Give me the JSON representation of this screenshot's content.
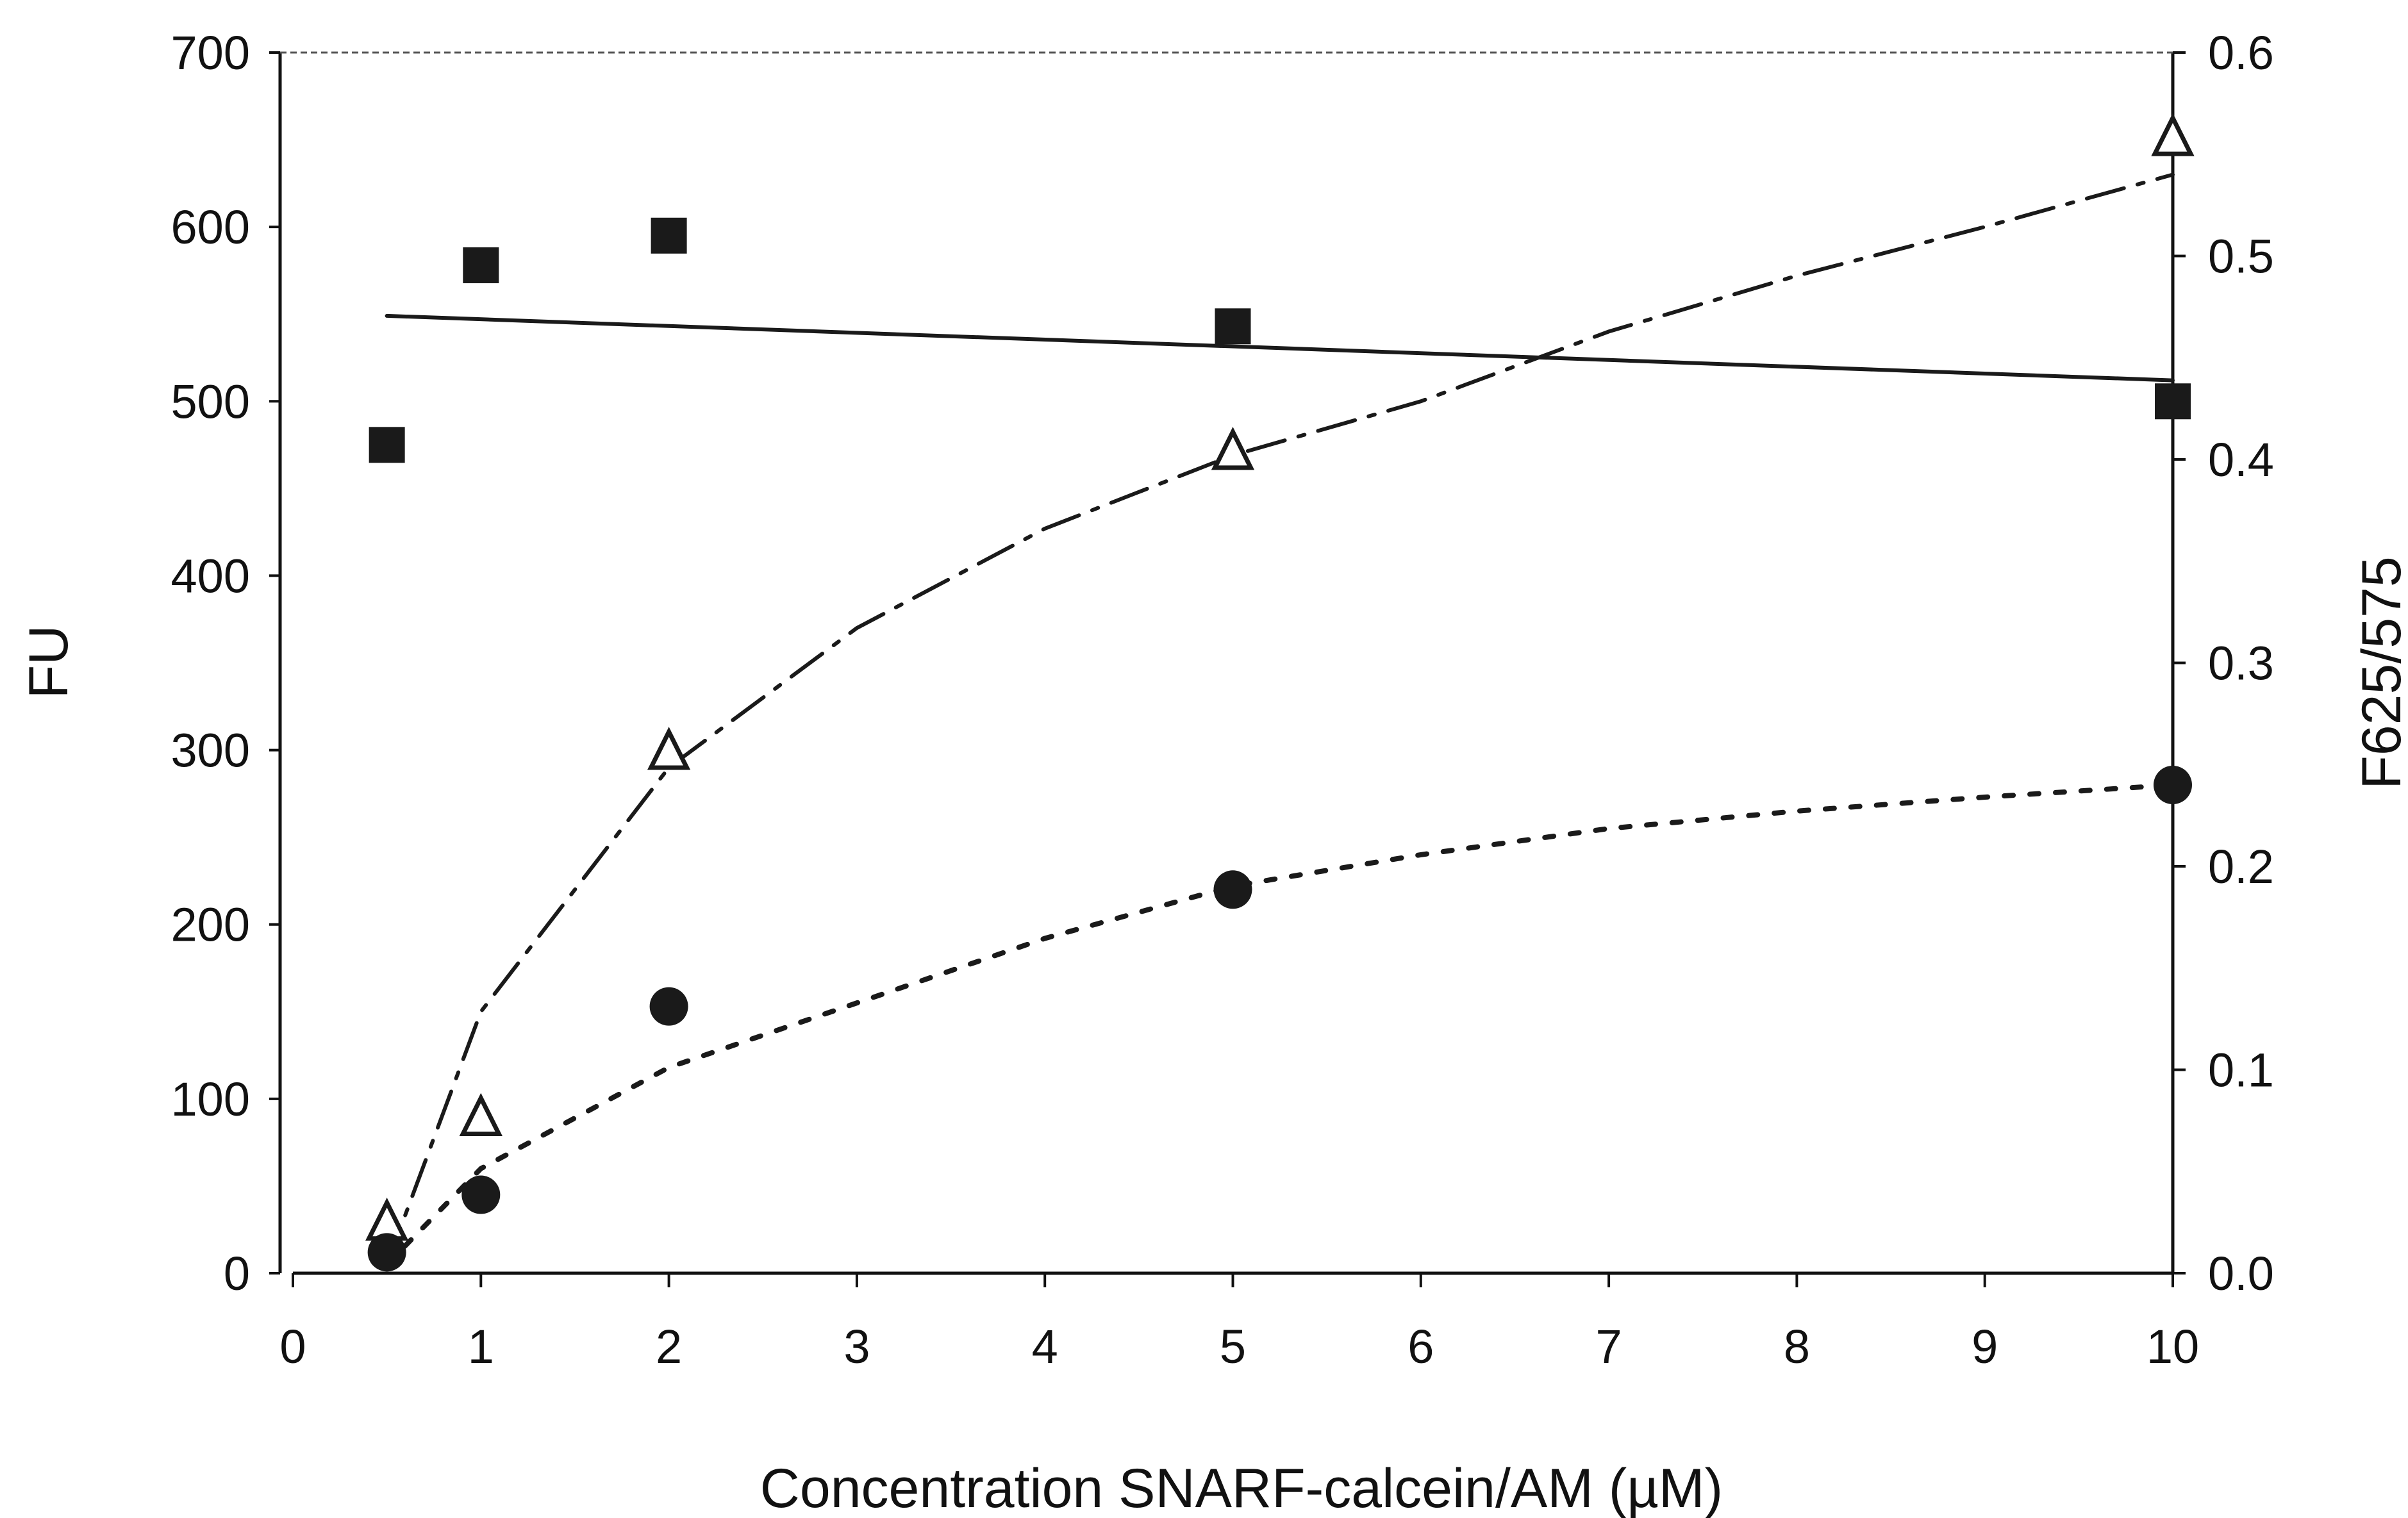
{
  "chart_data": {
    "type": "scatter",
    "title": "",
    "xlabel": "Concentration SNARF-calcein/AM (µM)",
    "ylabel_left": "FU",
    "ylabel_right": "F625/575",
    "x_ticks": [
      "0",
      "1",
      "2",
      "3",
      "4",
      "5",
      "6",
      "7",
      "8",
      "9",
      "10"
    ],
    "y_left_ticks": [
      "0",
      "100",
      "200",
      "300",
      "400",
      "500",
      "600",
      "700"
    ],
    "y_right_ticks": [
      "0.0",
      "0.1",
      "0.2",
      "0.3",
      "0.4",
      "0.5",
      "0.6"
    ],
    "xlim": [
      0,
      10
    ],
    "ylim_left": [
      0,
      700
    ],
    "ylim_right": [
      0,
      0.6
    ],
    "grid": false,
    "legend": "none",
    "series": [
      {
        "marker": "square-filled",
        "axis": "left",
        "color": "#1a1a1a",
        "x": [
          0.5,
          1,
          2,
          5,
          10
        ],
        "y": [
          475,
          578,
          595,
          543,
          500
        ],
        "trendline": {
          "style": "solid",
          "x": [
            0.5,
            10
          ],
          "y": [
            549,
            512
          ]
        }
      },
      {
        "marker": "triangle-open",
        "axis": "left",
        "color": "#1a1a1a",
        "x": [
          0.5,
          1,
          2,
          5,
          10
        ],
        "y": [
          28,
          88,
          298,
          470,
          650
        ],
        "trendline": {
          "style": "dash-dot",
          "x": [
            0.5,
            1,
            2,
            3,
            4,
            5,
            6,
            7,
            8,
            9,
            10
          ],
          "y": [
            5,
            150,
            290,
            370,
            427,
            469,
            500,
            540,
            572,
            600,
            630
          ]
        }
      },
      {
        "marker": "circle-filled",
        "axis": "left",
        "color": "#1a1a1a",
        "x": [
          0.5,
          1,
          2,
          5,
          10
        ],
        "y": [
          12,
          45,
          153,
          220,
          280
        ],
        "trendline": {
          "style": "dotted",
          "x": [
            0.5,
            1,
            2,
            3,
            4,
            5,
            6,
            7,
            8,
            9,
            10
          ],
          "y": [
            5,
            60,
            118,
            155,
            192,
            222,
            240,
            255,
            265,
            273,
            280
          ]
        }
      }
    ]
  }
}
